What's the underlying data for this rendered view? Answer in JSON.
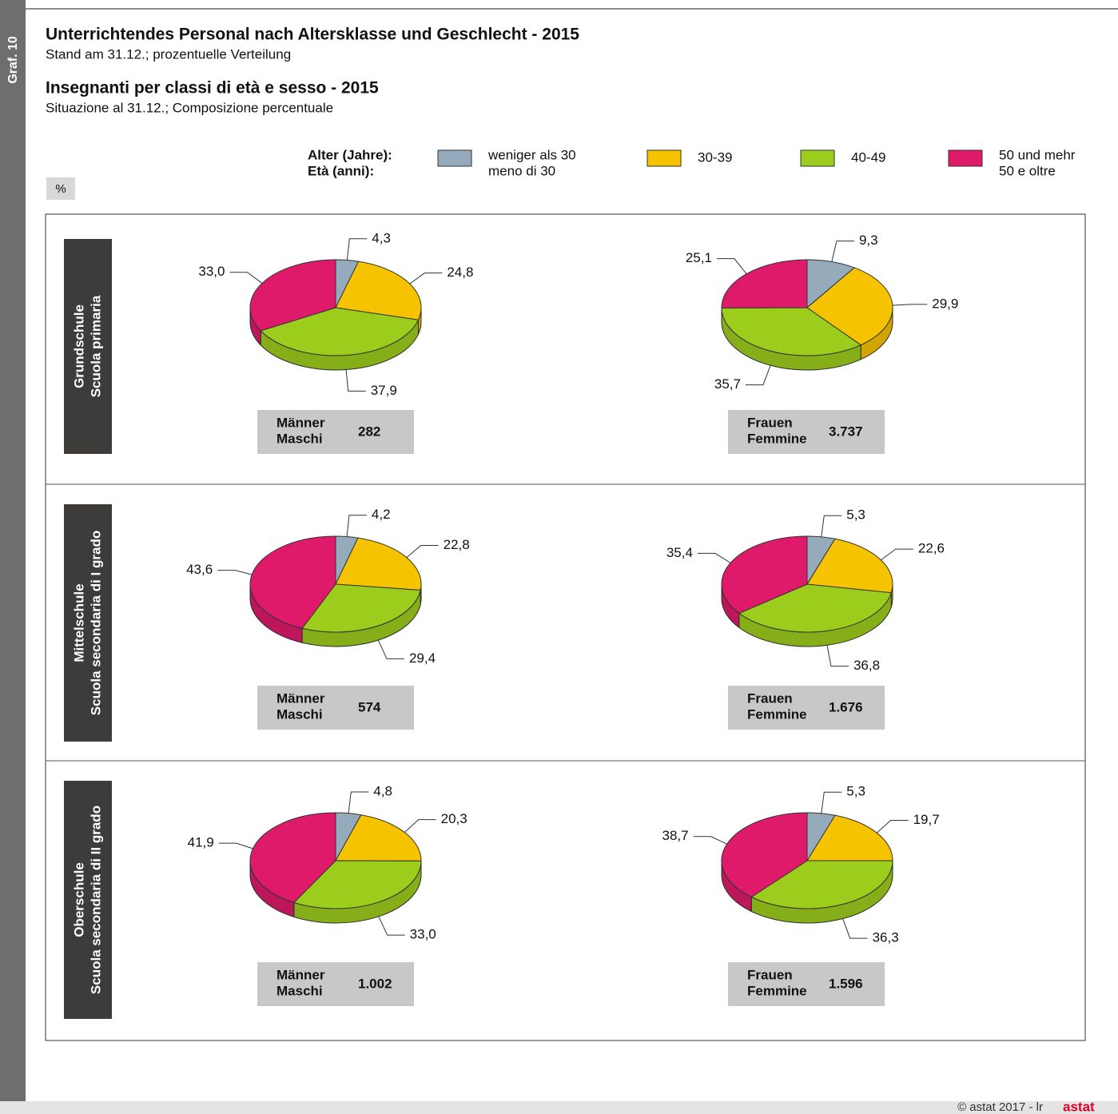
{
  "graf_label": "Graf. 10",
  "title_de": "Unterrichtendes Personal nach Altersklasse und Geschlecht - 2015",
  "subtitle_de": "Stand am 31.12.; prozentuelle Verteilung",
  "title_it": "Insegnanti per classi di età e sesso - 2015",
  "subtitle_it": "Situazione al 31.12.; Composizione percentuale",
  "legend": {
    "title_de": "Alter (Jahre):",
    "title_it": "Età (anni):",
    "items": [
      {
        "name_de": "weniger als 30",
        "name_it": "meno di 30",
        "color": "#95abbc"
      },
      {
        "name_de": "30-39",
        "color": "#f6c300"
      },
      {
        "name_de": "40-49",
        "color": "#9ccd1c"
      },
      {
        "name_de": "50 und mehr",
        "name_it": "50 e oltre",
        "color": "#e01a6a"
      }
    ]
  },
  "unit_label": "%",
  "rows": [
    {
      "label_de": "Grundschule",
      "label_it": "Scuola primaria"
    },
    {
      "label_de": "Mittelschule",
      "label_it": "Scuola secondaria di I grado"
    },
    {
      "label_de": "Oberschule",
      "label_it": "Scuola secondaria di II grado"
    }
  ],
  "chart_data": [
    {
      "type": "pie",
      "values": [
        4.3,
        24.8,
        37.9,
        33.0
      ],
      "value_labels": [
        "4,3",
        "24,8",
        "37,9",
        "33,0"
      ],
      "group_de": "Männer",
      "group_it": "Maschi",
      "total": 282
    },
    {
      "type": "pie",
      "values": [
        9.3,
        29.9,
        35.7,
        25.1
      ],
      "value_labels": [
        "9,3",
        "29,9",
        "35,7",
        "25,1"
      ],
      "group_de": "Frauen",
      "group_it": "Femmine",
      "total": 3737,
      "total_label": "3.737"
    },
    {
      "type": "pie",
      "values": [
        4.2,
        22.8,
        29.4,
        43.6
      ],
      "value_labels": [
        "4,2",
        "22,8",
        "29,4",
        "43,6"
      ],
      "group_de": "Männer",
      "group_it": "Maschi",
      "total": 574
    },
    {
      "type": "pie",
      "values": [
        5.3,
        22.6,
        36.8,
        35.4
      ],
      "value_labels": [
        "5,3",
        "22,6",
        "36,8",
        "35,4"
      ],
      "group_de": "Frauen",
      "group_it": "Femmine",
      "total": 1676,
      "total_label": "1.676"
    },
    {
      "type": "pie",
      "values": [
        4.8,
        20.3,
        33.0,
        41.9
      ],
      "value_labels": [
        "4,8",
        "20,3",
        "33,0",
        "41,9"
      ],
      "group_de": "Männer",
      "group_it": "Maschi",
      "total": 1002,
      "total_label": "1.002"
    },
    {
      "type": "pie",
      "values": [
        5.3,
        19.7,
        36.3,
        38.7
      ],
      "value_labels": [
        "5,3",
        "19,7",
        "36,3",
        "38,7"
      ],
      "group_de": "Frauen",
      "group_it": "Femmine",
      "total": 1596,
      "total_label": "1.596"
    }
  ],
  "footer": "© astat 2017 - lr",
  "logo": "astat"
}
